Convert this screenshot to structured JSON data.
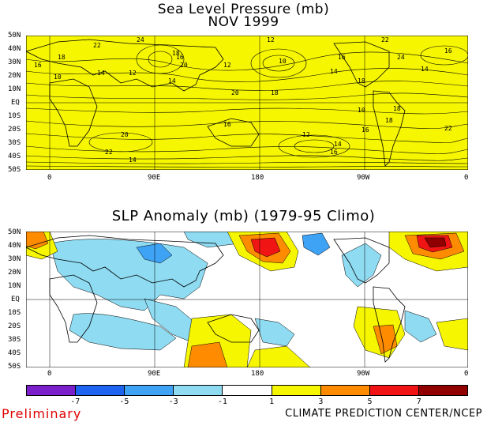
{
  "titles": {
    "top_line1": "Sea Level Pressure (mb)",
    "top_line2": "NOV 1999",
    "bottom": "SLP Anomaly (mb) (1979-95 Climo)"
  },
  "axes": {
    "lat_labels": [
      "50N",
      "40N",
      "30N",
      "20N",
      "10N",
      "EQ",
      "10S",
      "20S",
      "30S",
      "40S",
      "50S"
    ],
    "lon_labels": [
      "0",
      "90E",
      "180",
      "90W",
      "0"
    ]
  },
  "slp_contour_labels": [
    "24",
    "22",
    "18",
    "16",
    "14",
    "12",
    "10",
    "20",
    "18",
    "16",
    "14",
    "12",
    "10",
    "22",
    "16",
    "18",
    "14",
    "12",
    "20",
    "18",
    "16",
    "14",
    "24",
    "22",
    "18",
    "16",
    "10",
    "12",
    "14",
    "16",
    "18",
    "20",
    "22",
    "14",
    "16"
  ],
  "colorbar": {
    "labels": [
      "-7",
      "-5",
      "-3",
      "-1",
      "1",
      "3",
      "5",
      "7"
    ],
    "colors": [
      "#7a1fc9",
      "#1e64f0",
      "#3ea2f5",
      "#8edbf2",
      "#ffffff",
      "#f6f600",
      "#ff8c00",
      "#f01414",
      "#900000"
    ]
  },
  "colors": {
    "slp_fill": "#f6f600",
    "land_outline": "#000000",
    "preliminary": "#e00000"
  },
  "footer": {
    "preliminary": "Preliminary",
    "credit": "CLIMATE PREDICTION CENTER/NCEP"
  }
}
